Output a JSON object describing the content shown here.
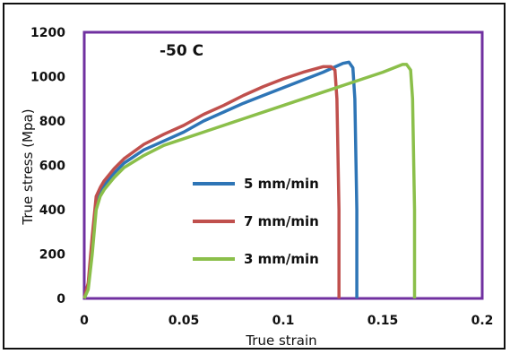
{
  "chart_data": {
    "type": "line",
    "title": "",
    "annotation": "-50 C",
    "xlabel": "True strain",
    "ylabel": "True stress (Mpa)",
    "xlim": [
      0,
      0.2
    ],
    "ylim": [
      0,
      1200
    ],
    "x_ticks": [
      "0",
      "0.05",
      "0.1",
      "0.15",
      "0.2"
    ],
    "y_ticks": [
      "0",
      "200",
      "400",
      "600",
      "800",
      "1000",
      "1200"
    ],
    "grid": false,
    "legend_position": "center",
    "series": [
      {
        "name": "5 mm/min",
        "color": "#2e75b6",
        "x": [
          0,
          0.002,
          0.004,
          0.006,
          0.008,
          0.01,
          0.015,
          0.02,
          0.03,
          0.04,
          0.05,
          0.06,
          0.07,
          0.08,
          0.09,
          0.1,
          0.11,
          0.12,
          0.125,
          0.13,
          0.133,
          0.135,
          0.136,
          0.137,
          0.137
        ],
        "y": [
          0,
          60,
          250,
          430,
          480,
          510,
          565,
          610,
          670,
          710,
          750,
          800,
          840,
          880,
          915,
          950,
          985,
          1020,
          1040,
          1060,
          1065,
          1040,
          900,
          400,
          0
        ]
      },
      {
        "name": "7 mm/min",
        "color": "#c0504d",
        "x": [
          0,
          0.002,
          0.004,
          0.006,
          0.008,
          0.01,
          0.015,
          0.02,
          0.03,
          0.04,
          0.05,
          0.06,
          0.07,
          0.08,
          0.09,
          0.1,
          0.11,
          0.12,
          0.124,
          0.126,
          0.127,
          0.128,
          0.128
        ],
        "y": [
          0,
          70,
          280,
          460,
          500,
          530,
          585,
          630,
          695,
          740,
          780,
          830,
          870,
          915,
          955,
          990,
          1020,
          1045,
          1045,
          1030,
          900,
          400,
          0
        ]
      },
      {
        "name": "3 mm/min",
        "color": "#8bbf4a",
        "x": [
          0,
          0.002,
          0.004,
          0.006,
          0.008,
          0.01,
          0.015,
          0.02,
          0.03,
          0.04,
          0.05,
          0.06,
          0.08,
          0.1,
          0.12,
          0.14,
          0.15,
          0.16,
          0.162,
          0.164,
          0.165,
          0.166,
          0.166
        ],
        "y": [
          0,
          40,
          200,
          400,
          460,
          490,
          545,
          590,
          645,
          690,
          720,
          750,
          810,
          870,
          930,
          990,
          1020,
          1055,
          1055,
          1030,
          900,
          400,
          0
        ]
      }
    ]
  }
}
